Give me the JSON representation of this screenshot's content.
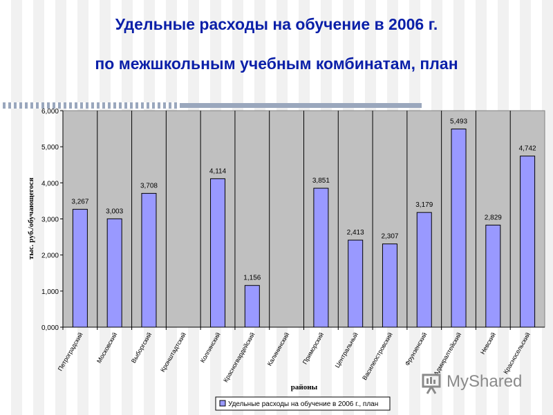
{
  "title_line1": "Удельные расходы на обучение в 2006 г.",
  "title_line2": "по межшкольным учебным комбинатам, план",
  "chart_data": {
    "type": "bar",
    "categories": [
      "Петроградский",
      "Московский",
      "Выборгский",
      "Кронштадтский",
      "Колпинский",
      "Красногвардейский",
      "Калининский",
      "Приморский",
      "Центральный",
      "Василеостровский",
      "Фрунзенский",
      "Адмиралтейский",
      "Невский",
      "Красносельский"
    ],
    "values": [
      3.267,
      3.003,
      3.708,
      null,
      4.114,
      1.156,
      null,
      3.851,
      2.413,
      2.307,
      3.179,
      5.493,
      2.829,
      4.742
    ],
    "data_labels": [
      "3,267",
      "3,003",
      "3,708",
      "",
      "4,114",
      "1,156",
      "",
      "3,851",
      "2,413",
      "2,307",
      "3,179",
      "5,493",
      "2,829",
      "4,742"
    ],
    "yticks": [
      0,
      1,
      2,
      3,
      4,
      5,
      6
    ],
    "ytick_labels": [
      "0,000",
      "1,000",
      "2,000",
      "3,000",
      "4,000",
      "5,000",
      "6,000"
    ],
    "ylim": [
      0,
      6
    ],
    "xlabel": "районы",
    "ylabel": "тыс. руб./обучающегося",
    "legend": "Удельные расходы на обучение в 2006 г., план",
    "legend_position": "bottom",
    "grid": true,
    "bar_color": "#9999ff",
    "plot_bg": "#c0c0c0"
  },
  "logo": {
    "text": "MyShared",
    "icon": "presentation-board-icon",
    "color": "#8a8a8a"
  }
}
